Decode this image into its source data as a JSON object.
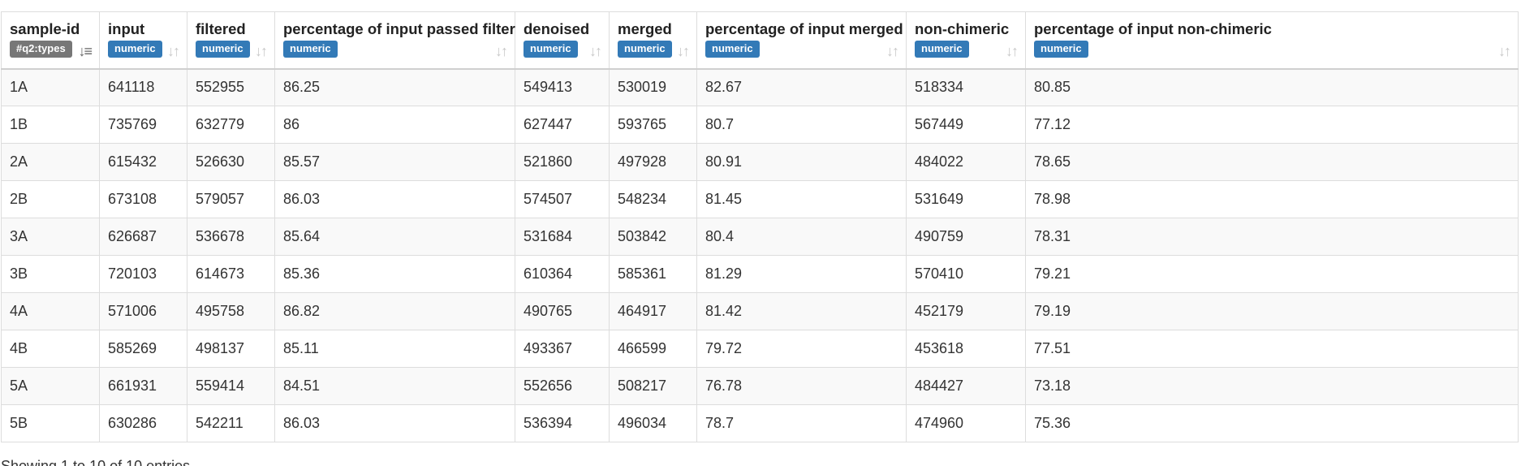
{
  "table": {
    "columns": [
      {
        "title": "sample-id",
        "type": "#q2:types"
      },
      {
        "title": "input",
        "type": "numeric"
      },
      {
        "title": "filtered",
        "type": "numeric"
      },
      {
        "title": "percentage of input passed filter",
        "type": "numeric"
      },
      {
        "title": "denoised",
        "type": "numeric"
      },
      {
        "title": "merged",
        "type": "numeric"
      },
      {
        "title": "percentage of input merged",
        "type": "numeric"
      },
      {
        "title": "non-chimeric",
        "type": "numeric"
      },
      {
        "title": "percentage of input non-chimeric",
        "type": "numeric"
      }
    ],
    "icons": {
      "sort_active": "sort-amount-down-icon",
      "sort_neutral": "sort-icon"
    },
    "rows": [
      [
        "1A",
        "641118",
        "552955",
        "86.25",
        "549413",
        "530019",
        "82.67",
        "518334",
        "80.85"
      ],
      [
        "1B",
        "735769",
        "632779",
        "86",
        "627447",
        "593765",
        "80.7",
        "567449",
        "77.12"
      ],
      [
        "2A",
        "615432",
        "526630",
        "85.57",
        "521860",
        "497928",
        "80.91",
        "484022",
        "78.65"
      ],
      [
        "2B",
        "673108",
        "579057",
        "86.03",
        "574507",
        "548234",
        "81.45",
        "531649",
        "78.98"
      ],
      [
        "3A",
        "626687",
        "536678",
        "85.64",
        "531684",
        "503842",
        "80.4",
        "490759",
        "78.31"
      ],
      [
        "3B",
        "720103",
        "614673",
        "85.36",
        "610364",
        "585361",
        "81.29",
        "570410",
        "79.21"
      ],
      [
        "4A",
        "571006",
        "495758",
        "86.82",
        "490765",
        "464917",
        "81.42",
        "452179",
        "79.19"
      ],
      [
        "4B",
        "585269",
        "498137",
        "85.11",
        "493367",
        "466599",
        "79.72",
        "453618",
        "77.51"
      ],
      [
        "5A",
        "661931",
        "559414",
        "84.51",
        "552656",
        "508217",
        "76.78",
        "484427",
        "73.18"
      ],
      [
        "5B",
        "630286",
        "542211",
        "86.03",
        "536394",
        "496034",
        "78.7",
        "474960",
        "75.36"
      ]
    ]
  },
  "info": "Showing 1 to 10 of 10 entries",
  "colors": {
    "badge_numeric": "#337ab7",
    "badge_types": "#777777",
    "row_stripe": "#f9f9f9",
    "border": "#dddddd"
  }
}
